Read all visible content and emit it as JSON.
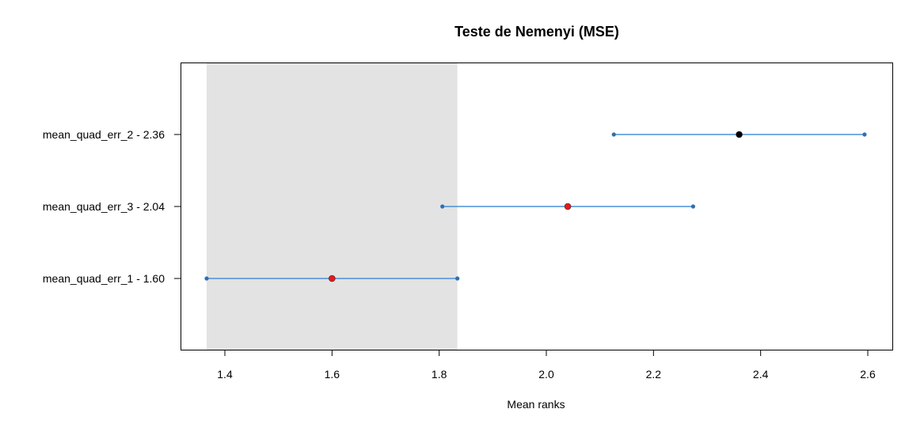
{
  "chart_data": {
    "type": "scatter",
    "title": "Teste de Nemenyi (MSE)",
    "xlabel": "Mean ranks",
    "ylabel": "",
    "xlim": [
      1.3,
      2.625
    ],
    "x_ticks": [
      1.4,
      1.6,
      1.8,
      2.0,
      2.2,
      2.4,
      2.6
    ],
    "x_tick_labels": [
      "1.4",
      "1.6",
      "1.8",
      "2.0",
      "2.2",
      "2.4",
      "2.6"
    ],
    "critical_interval": [
      1.366,
      1.834
    ],
    "rows": [
      {
        "label": "mean_quad_err_2 - 2.36",
        "mean": 2.36,
        "low": 2.126,
        "high": 2.594,
        "point_color": "#000000"
      },
      {
        "label": "mean_quad_err_3 - 2.04",
        "mean": 2.04,
        "low": 1.806,
        "high": 2.274,
        "point_color": "#e31a1c"
      },
      {
        "label": "mean_quad_err_1 - 1.60",
        "mean": 1.6,
        "low": 1.366,
        "high": 1.834,
        "point_color": "#e31a1c"
      }
    ],
    "colors": {
      "interval_line": "#4a90d9",
      "interval_end": "#2f6fb0",
      "shaded_region": "#e3e3e3"
    },
    "grid": false
  }
}
